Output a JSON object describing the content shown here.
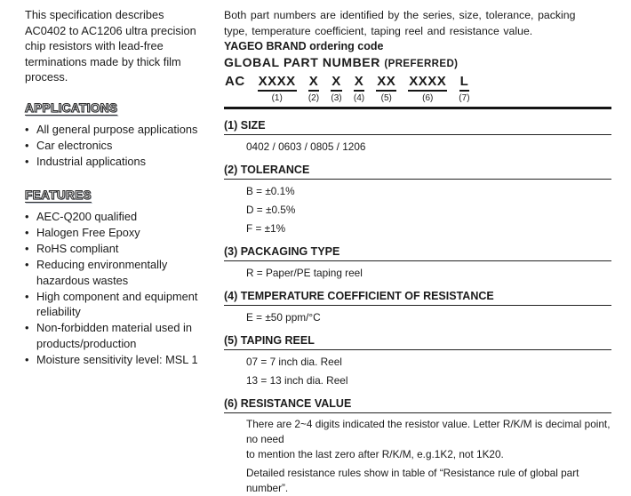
{
  "ink_color": "#1b1b1b",
  "bullet_char": "•",
  "left": {
    "intro": "This specification describes\nAC0402 to AC1206 ultra precision\nchip resistors with lead-free\nterminations made by thick film\nprocess.",
    "applications": {
      "title": "APPLICATIONS",
      "items": [
        "All general purpose applications",
        "Car electronics",
        "Industrial applications"
      ]
    },
    "features": {
      "title": "FEATURES",
      "items": [
        "AEC-Q200 qualified",
        "Halogen Free Epoxy",
        "RoHS compliant",
        "Reducing environmentally\nhazardous wastes",
        "High component and equipment\nreliability",
        "Non-forbidden material used in\nproducts/production",
        "Moisture sensitivity level: MSL 1"
      ]
    }
  },
  "right": {
    "intro": "Both part numbers are identified by the series, size, tolerance, packing\ntype, temperature coefficient, taping reel and resistance value.",
    "ordering_code_label": "YAGEO BRAND ordering code",
    "global_part_number": {
      "title": "GLOBAL PART NUMBER",
      "suffix": "(PREFERRED)"
    },
    "part_code": {
      "prefix": "AC",
      "groups": [
        {
          "text": "XXXX",
          "num": "(1)"
        },
        {
          "text": "X",
          "num": "(2)"
        },
        {
          "text": "X",
          "num": "(3)"
        },
        {
          "text": "X",
          "num": "(4)"
        },
        {
          "text": "XX",
          "num": "(5)"
        },
        {
          "text": "XXXX",
          "num": "(6)"
        },
        {
          "text": "L",
          "num": "(7)"
        }
      ]
    },
    "sections": [
      {
        "heading": "(1) SIZE",
        "lines": [
          "0402 / 0603 / 0805 / 1206"
        ]
      },
      {
        "heading": "(2) TOLERANCE",
        "lines": [
          "B = ±0.1%",
          "D = ±0.5%",
          "F = ±1%"
        ]
      },
      {
        "heading": "(3) PACKAGING TYPE",
        "lines": [
          "R = Paper/PE taping reel"
        ]
      },
      {
        "heading": "(4) TEMPERATURE COEFFICIENT OF RESISTANCE",
        "lines": [
          "E = ±50 ppm/°C"
        ]
      },
      {
        "heading": "(5) TAPING REEL",
        "lines": [
          "07 = 7 inch dia. Reel",
          "13 = 13 inch dia. Reel"
        ]
      },
      {
        "heading": "(6) RESISTANCE VALUE",
        "paragraphs": [
          "There are 2~4 digits indicated the resistor value. Letter R/K/M is decimal point, no need\nto mention the last zero after R/K/M, e.g.1K2, not 1K20.",
          "Detailed resistance rules show in table of “Resistance rule of global part number”."
        ]
      }
    ]
  }
}
